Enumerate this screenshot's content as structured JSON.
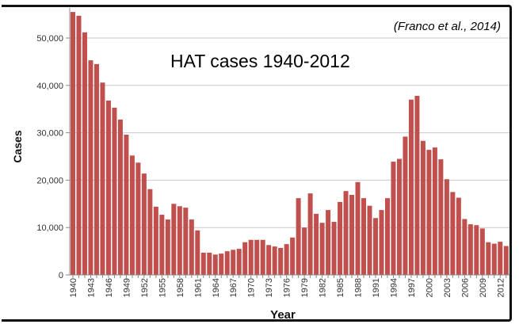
{
  "chart_data": {
    "type": "bar",
    "title": "HAT cases 1940-2012",
    "annotation": "(Franco et al., 2014)",
    "xlabel": "Year",
    "ylabel": "Cases",
    "ylim": [
      0,
      56000
    ],
    "yticks": [
      0,
      10000,
      20000,
      30000,
      40000,
      50000
    ],
    "ytick_labels": [
      "0",
      "10,000",
      "20,000",
      "30,000",
      "40,000",
      "50,000"
    ],
    "xtick_labels": [
      "1940",
      "1943",
      "1946",
      "1949",
      "1952",
      "1955",
      "1958",
      "1961",
      "1964",
      "1967",
      "1970",
      "1973",
      "1976",
      "1979",
      "1982",
      "1985",
      "1988",
      "1991",
      "1994",
      "1997",
      "2000",
      "2003",
      "2006",
      "2009",
      "2012"
    ],
    "grid": true,
    "bar_color": "#c0504d",
    "x_start": 1940,
    "values": [
      55500,
      54700,
      51200,
      45300,
      44500,
      40600,
      36800,
      35300,
      32800,
      29600,
      25200,
      23700,
      21400,
      18100,
      14400,
      12700,
      11700,
      15000,
      14500,
      14200,
      11700,
      9400,
      4700,
      4700,
      4300,
      4500,
      5000,
      5300,
      5500,
      6900,
      7400,
      7400,
      7400,
      6300,
      6000,
      5700,
      6500,
      7900,
      16200,
      10000,
      17200,
      12900,
      11000,
      13700,
      11200,
      15400,
      17700,
      16900,
      19600,
      16200,
      14600,
      12000,
      13700,
      16200,
      23900,
      24500,
      29200,
      37000,
      37800,
      28300,
      26400,
      26900,
      24400,
      20200,
      17500,
      16300,
      11800,
      10700,
      10500,
      9800,
      6900,
      6600,
      7000,
      6100
    ]
  }
}
